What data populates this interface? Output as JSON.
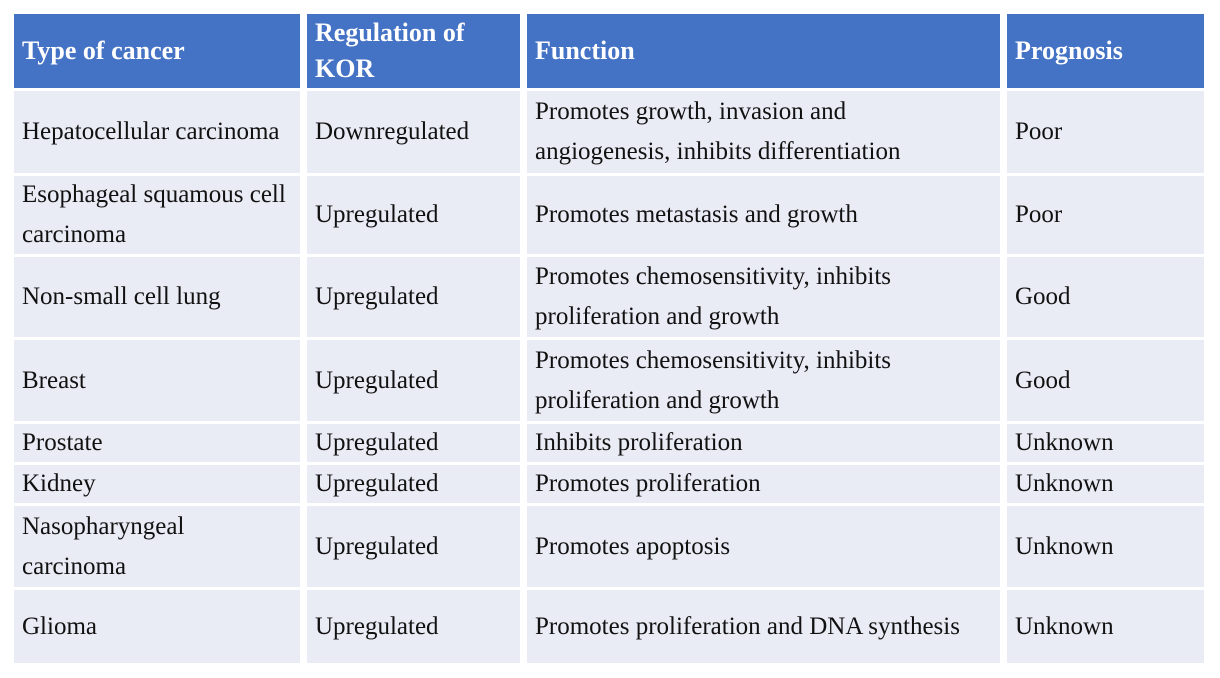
{
  "table": {
    "headers": [
      "Type of cancer",
      "Regulation of KOR",
      "Function",
      "Prognosis"
    ],
    "rows": [
      {
        "type": "Hepatocellular carcinoma",
        "regulation": "Downregulated",
        "function": "Promotes growth, invasion and angiogenesis, inhibits differentiation",
        "prognosis": "Poor"
      },
      {
        "type": "Esophageal squamous cell carcinoma",
        "regulation": "Upregulated",
        "function": "Promotes metastasis and growth",
        "prognosis": "Poor"
      },
      {
        "type": "Non-small cell lung",
        "regulation": "Upregulated",
        "function": "Promotes chemosensitivity, inhibits proliferation and growth",
        "prognosis": "Good"
      },
      {
        "type": "Breast",
        "regulation": "Upregulated",
        "function": "Promotes chemosensitivity, inhibits proliferation and growth",
        "prognosis": "Good"
      },
      {
        "type": "Prostate",
        "regulation": "Upregulated",
        "function": "Inhibits proliferation",
        "prognosis": "Unknown"
      },
      {
        "type": "Kidney",
        "regulation": "Upregulated",
        "function": "Promotes proliferation",
        "prognosis": "Unknown"
      },
      {
        "type": "Nasopharyngeal carcinoma",
        "regulation": "Upregulated",
        "function": "Promotes apoptosis",
        "prognosis": "Unknown"
      },
      {
        "type": "Glioma",
        "regulation": "Upregulated",
        "function": "Promotes proliferation and DNA synthesis",
        "prognosis": "Unknown"
      }
    ],
    "colors": {
      "header_bg": "#4472C4",
      "header_text": "#FFFFFF",
      "row_bg": "#E9EBF5",
      "body_text": "#111111",
      "gap": "#FFFFFF"
    }
  }
}
